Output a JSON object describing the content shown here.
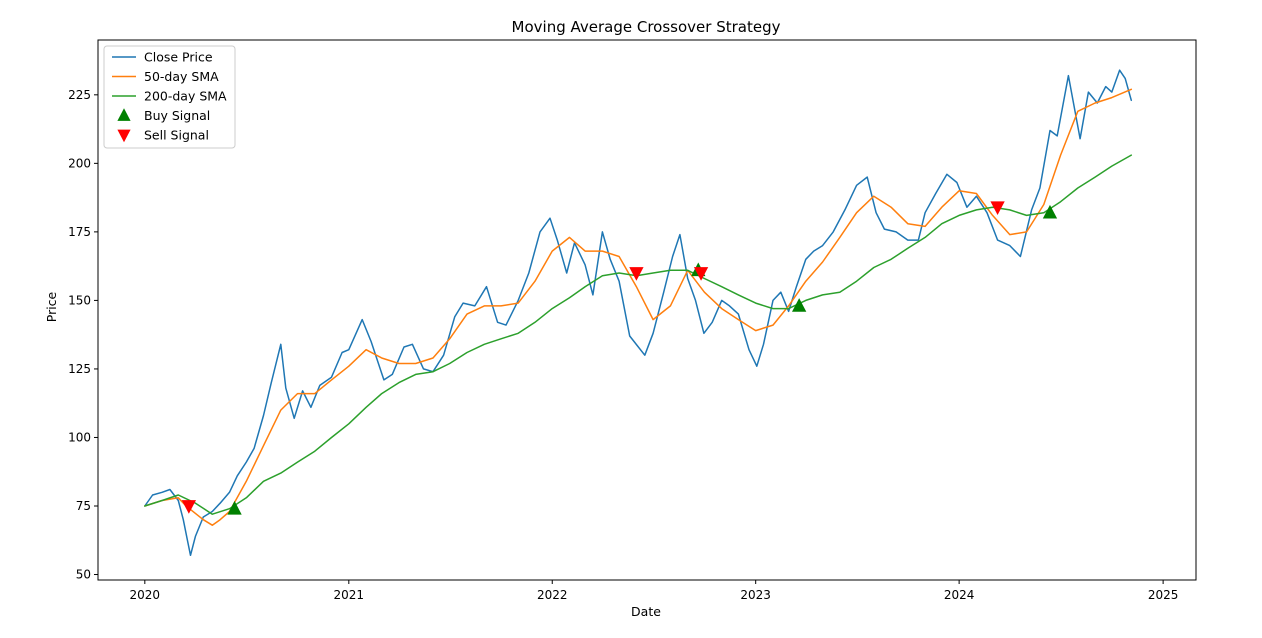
{
  "chart_data": {
    "type": "line",
    "title": "Moving Average Crossover Strategy",
    "xlabel": "Date",
    "ylabel": "Price",
    "xlim": [
      "2019-10-09",
      "2025-03-01"
    ],
    "ylim": [
      48,
      245
    ],
    "x_ticks": [
      "2020",
      "2021",
      "2022",
      "2023",
      "2024",
      "2025"
    ],
    "y_ticks": [
      50,
      75,
      100,
      125,
      150,
      175,
      200,
      225
    ],
    "grid": false,
    "legend_position": "top-left",
    "series": [
      {
        "name": "Close Price",
        "color": "#1f77b4",
        "points": [
          [
            "2020-01-01",
            75
          ],
          [
            "2020-01-15",
            79
          ],
          [
            "2020-02-01",
            80
          ],
          [
            "2020-02-15",
            81
          ],
          [
            "2020-03-01",
            77
          ],
          [
            "2020-03-10",
            70
          ],
          [
            "2020-03-18",
            62
          ],
          [
            "2020-03-23",
            57
          ],
          [
            "2020-04-01",
            64
          ],
          [
            "2020-04-15",
            71
          ],
          [
            "2020-05-01",
            73
          ],
          [
            "2020-05-15",
            76
          ],
          [
            "2020-06-01",
            80
          ],
          [
            "2020-06-15",
            86
          ],
          [
            "2020-07-01",
            91
          ],
          [
            "2020-07-15",
            96
          ],
          [
            "2020-08-01",
            108
          ],
          [
            "2020-08-15",
            120
          ],
          [
            "2020-09-01",
            134
          ],
          [
            "2020-09-10",
            118
          ],
          [
            "2020-09-25",
            107
          ],
          [
            "2020-10-10",
            117
          ],
          [
            "2020-10-25",
            111
          ],
          [
            "2020-11-10",
            119
          ],
          [
            "2020-12-01",
            122
          ],
          [
            "2020-12-20",
            131
          ],
          [
            "2021-01-01",
            132
          ],
          [
            "2021-01-25",
            143
          ],
          [
            "2021-02-10",
            135
          ],
          [
            "2021-03-05",
            121
          ],
          [
            "2021-03-20",
            123
          ],
          [
            "2021-04-10",
            133
          ],
          [
            "2021-04-25",
            134
          ],
          [
            "2021-05-15",
            125
          ],
          [
            "2021-06-01",
            124
          ],
          [
            "2021-06-20",
            130
          ],
          [
            "2021-07-10",
            144
          ],
          [
            "2021-07-25",
            149
          ],
          [
            "2021-08-15",
            148
          ],
          [
            "2021-09-05",
            155
          ],
          [
            "2021-09-25",
            142
          ],
          [
            "2021-10-10",
            141
          ],
          [
            "2021-11-01",
            150
          ],
          [
            "2021-11-20",
            160
          ],
          [
            "2021-12-10",
            175
          ],
          [
            "2021-12-28",
            180
          ],
          [
            "2022-01-10",
            172
          ],
          [
            "2022-01-27",
            160
          ],
          [
            "2022-02-10",
            171
          ],
          [
            "2022-03-01",
            163
          ],
          [
            "2022-03-15",
            152
          ],
          [
            "2022-04-01",
            175
          ],
          [
            "2022-04-15",
            165
          ],
          [
            "2022-05-01",
            157
          ],
          [
            "2022-05-20",
            137
          ],
          [
            "2022-06-16",
            130
          ],
          [
            "2022-07-01",
            138
          ],
          [
            "2022-07-20",
            153
          ],
          [
            "2022-08-05",
            166
          ],
          [
            "2022-08-18",
            174
          ],
          [
            "2022-09-01",
            158
          ],
          [
            "2022-09-15",
            150
          ],
          [
            "2022-09-30",
            138
          ],
          [
            "2022-10-15",
            142
          ],
          [
            "2022-11-01",
            150
          ],
          [
            "2022-11-15",
            148
          ],
          [
            "2022-12-01",
            145
          ],
          [
            "2022-12-20",
            132
          ],
          [
            "2023-01-03",
            126
          ],
          [
            "2023-01-15",
            134
          ],
          [
            "2023-02-01",
            150
          ],
          [
            "2023-02-15",
            153
          ],
          [
            "2023-03-01",
            146
          ],
          [
            "2023-03-15",
            155
          ],
          [
            "2023-04-01",
            165
          ],
          [
            "2023-04-15",
            168
          ],
          [
            "2023-05-01",
            170
          ],
          [
            "2023-05-20",
            175
          ],
          [
            "2023-06-10",
            183
          ],
          [
            "2023-07-01",
            192
          ],
          [
            "2023-07-20",
            195
          ],
          [
            "2023-08-05",
            182
          ],
          [
            "2023-08-20",
            176
          ],
          [
            "2023-09-10",
            175
          ],
          [
            "2023-10-01",
            172
          ],
          [
            "2023-10-20",
            172
          ],
          [
            "2023-11-01",
            182
          ],
          [
            "2023-11-20",
            189
          ],
          [
            "2023-12-10",
            196
          ],
          [
            "2023-12-28",
            193
          ],
          [
            "2024-01-15",
            184
          ],
          [
            "2024-02-01",
            188
          ],
          [
            "2024-02-20",
            182
          ],
          [
            "2024-03-10",
            172
          ],
          [
            "2024-04-01",
            170
          ],
          [
            "2024-04-20",
            166
          ],
          [
            "2024-05-10",
            183
          ],
          [
            "2024-05-25",
            191
          ],
          [
            "2024-06-12",
            212
          ],
          [
            "2024-06-25",
            210
          ],
          [
            "2024-07-15",
            232
          ],
          [
            "2024-08-05",
            209
          ],
          [
            "2024-08-20",
            226
          ],
          [
            "2024-09-05",
            222
          ],
          [
            "2024-09-20",
            228
          ],
          [
            "2024-10-01",
            226
          ],
          [
            "2024-10-15",
            234
          ],
          [
            "2024-10-25",
            231
          ],
          [
            "2024-11-05",
            223
          ]
        ]
      },
      {
        "name": "50-day SMA",
        "color": "#ff7f0e",
        "points": [
          [
            "2020-01-01",
            75
          ],
          [
            "2020-02-01",
            77
          ],
          [
            "2020-03-01",
            78
          ],
          [
            "2020-03-15",
            75
          ],
          [
            "2020-04-15",
            70
          ],
          [
            "2020-05-01",
            68
          ],
          [
            "2020-05-15",
            70
          ],
          [
            "2020-06-01",
            73
          ],
          [
            "2020-07-01",
            84
          ],
          [
            "2020-08-01",
            97
          ],
          [
            "2020-09-01",
            110
          ],
          [
            "2020-10-01",
            116
          ],
          [
            "2020-11-01",
            116
          ],
          [
            "2020-12-01",
            121
          ],
          [
            "2021-01-01",
            126
          ],
          [
            "2021-02-01",
            132
          ],
          [
            "2021-03-01",
            129
          ],
          [
            "2021-04-01",
            127
          ],
          [
            "2021-05-01",
            127
          ],
          [
            "2021-06-01",
            129
          ],
          [
            "2021-07-01",
            136
          ],
          [
            "2021-08-01",
            145
          ],
          [
            "2021-09-01",
            148
          ],
          [
            "2021-10-01",
            148
          ],
          [
            "2021-11-01",
            149
          ],
          [
            "2021-12-01",
            157
          ],
          [
            "2022-01-01",
            168
          ],
          [
            "2022-02-01",
            173
          ],
          [
            "2022-03-01",
            168
          ],
          [
            "2022-04-01",
            168
          ],
          [
            "2022-05-01",
            166
          ],
          [
            "2022-06-01",
            155
          ],
          [
            "2022-07-01",
            143
          ],
          [
            "2022-08-01",
            148
          ],
          [
            "2022-09-01",
            161
          ],
          [
            "2022-10-01",
            153
          ],
          [
            "2022-11-01",
            147
          ],
          [
            "2022-12-01",
            143
          ],
          [
            "2023-01-01",
            139
          ],
          [
            "2023-02-01",
            141
          ],
          [
            "2023-03-01",
            148
          ],
          [
            "2023-04-01",
            157
          ],
          [
            "2023-05-01",
            164
          ],
          [
            "2023-06-01",
            173
          ],
          [
            "2023-07-01",
            182
          ],
          [
            "2023-08-01",
            188
          ],
          [
            "2023-09-01",
            184
          ],
          [
            "2023-10-01",
            178
          ],
          [
            "2023-11-01",
            177
          ],
          [
            "2023-12-01",
            184
          ],
          [
            "2024-01-01",
            190
          ],
          [
            "2024-02-01",
            189
          ],
          [
            "2024-03-01",
            181
          ],
          [
            "2024-04-01",
            174
          ],
          [
            "2024-05-01",
            175
          ],
          [
            "2024-06-01",
            185
          ],
          [
            "2024-07-01",
            203
          ],
          [
            "2024-08-01",
            219
          ],
          [
            "2024-09-01",
            222
          ],
          [
            "2024-10-01",
            224
          ],
          [
            "2024-11-05",
            227
          ]
        ]
      },
      {
        "name": "200-day SMA",
        "color": "#2ca02c",
        "points": [
          [
            "2020-01-01",
            75
          ],
          [
            "2020-02-01",
            77
          ],
          [
            "2020-03-01",
            79
          ],
          [
            "2020-04-01",
            76
          ],
          [
            "2020-05-01",
            72
          ],
          [
            "2020-06-01",
            74
          ],
          [
            "2020-07-01",
            78
          ],
          [
            "2020-08-01",
            84
          ],
          [
            "2020-09-01",
            87
          ],
          [
            "2020-10-01",
            91
          ],
          [
            "2020-11-01",
            95
          ],
          [
            "2020-12-01",
            100
          ],
          [
            "2021-01-01",
            105
          ],
          [
            "2021-02-01",
            111
          ],
          [
            "2021-03-01",
            116
          ],
          [
            "2021-04-01",
            120
          ],
          [
            "2021-05-01",
            123
          ],
          [
            "2021-06-01",
            124
          ],
          [
            "2021-07-01",
            127
          ],
          [
            "2021-08-01",
            131
          ],
          [
            "2021-09-01",
            134
          ],
          [
            "2021-10-01",
            136
          ],
          [
            "2021-11-01",
            138
          ],
          [
            "2021-12-01",
            142
          ],
          [
            "2022-01-01",
            147
          ],
          [
            "2022-02-01",
            151
          ],
          [
            "2022-03-01",
            155
          ],
          [
            "2022-04-01",
            159
          ],
          [
            "2022-05-01",
            160
          ],
          [
            "2022-06-01",
            159
          ],
          [
            "2022-07-01",
            160
          ],
          [
            "2022-08-01",
            161
          ],
          [
            "2022-09-01",
            161
          ],
          [
            "2022-10-01",
            158
          ],
          [
            "2022-11-01",
            155
          ],
          [
            "2022-12-01",
            152
          ],
          [
            "2023-01-01",
            149
          ],
          [
            "2023-02-01",
            147
          ],
          [
            "2023-03-01",
            147
          ],
          [
            "2023-04-01",
            150
          ],
          [
            "2023-05-01",
            152
          ],
          [
            "2023-06-01",
            153
          ],
          [
            "2023-07-01",
            157
          ],
          [
            "2023-08-01",
            162
          ],
          [
            "2023-09-01",
            165
          ],
          [
            "2023-10-01",
            169
          ],
          [
            "2023-11-01",
            173
          ],
          [
            "2023-12-01",
            178
          ],
          [
            "2024-01-01",
            181
          ],
          [
            "2024-02-01",
            183
          ],
          [
            "2024-03-01",
            184
          ],
          [
            "2024-04-01",
            183
          ],
          [
            "2024-05-01",
            181
          ],
          [
            "2024-06-01",
            182
          ],
          [
            "2024-07-01",
            186
          ],
          [
            "2024-08-01",
            191
          ],
          [
            "2024-09-01",
            195
          ],
          [
            "2024-10-01",
            199
          ],
          [
            "2024-11-05",
            203
          ]
        ]
      }
    ],
    "markers": [
      {
        "name": "Buy Signal",
        "color": "#008000",
        "shape": "triangle-up",
        "points": [
          [
            "2020-06-10",
            74
          ],
          [
            "2022-09-20",
            161
          ],
          [
            "2023-03-20",
            148
          ],
          [
            "2024-06-12",
            182
          ]
        ]
      },
      {
        "name": "Sell Signal",
        "color": "#ff0000",
        "shape": "triangle-down",
        "points": [
          [
            "2020-03-20",
            75
          ],
          [
            "2022-06-01",
            160
          ],
          [
            "2022-09-25",
            160
          ],
          [
            "2024-03-10",
            184
          ]
        ]
      }
    ]
  }
}
